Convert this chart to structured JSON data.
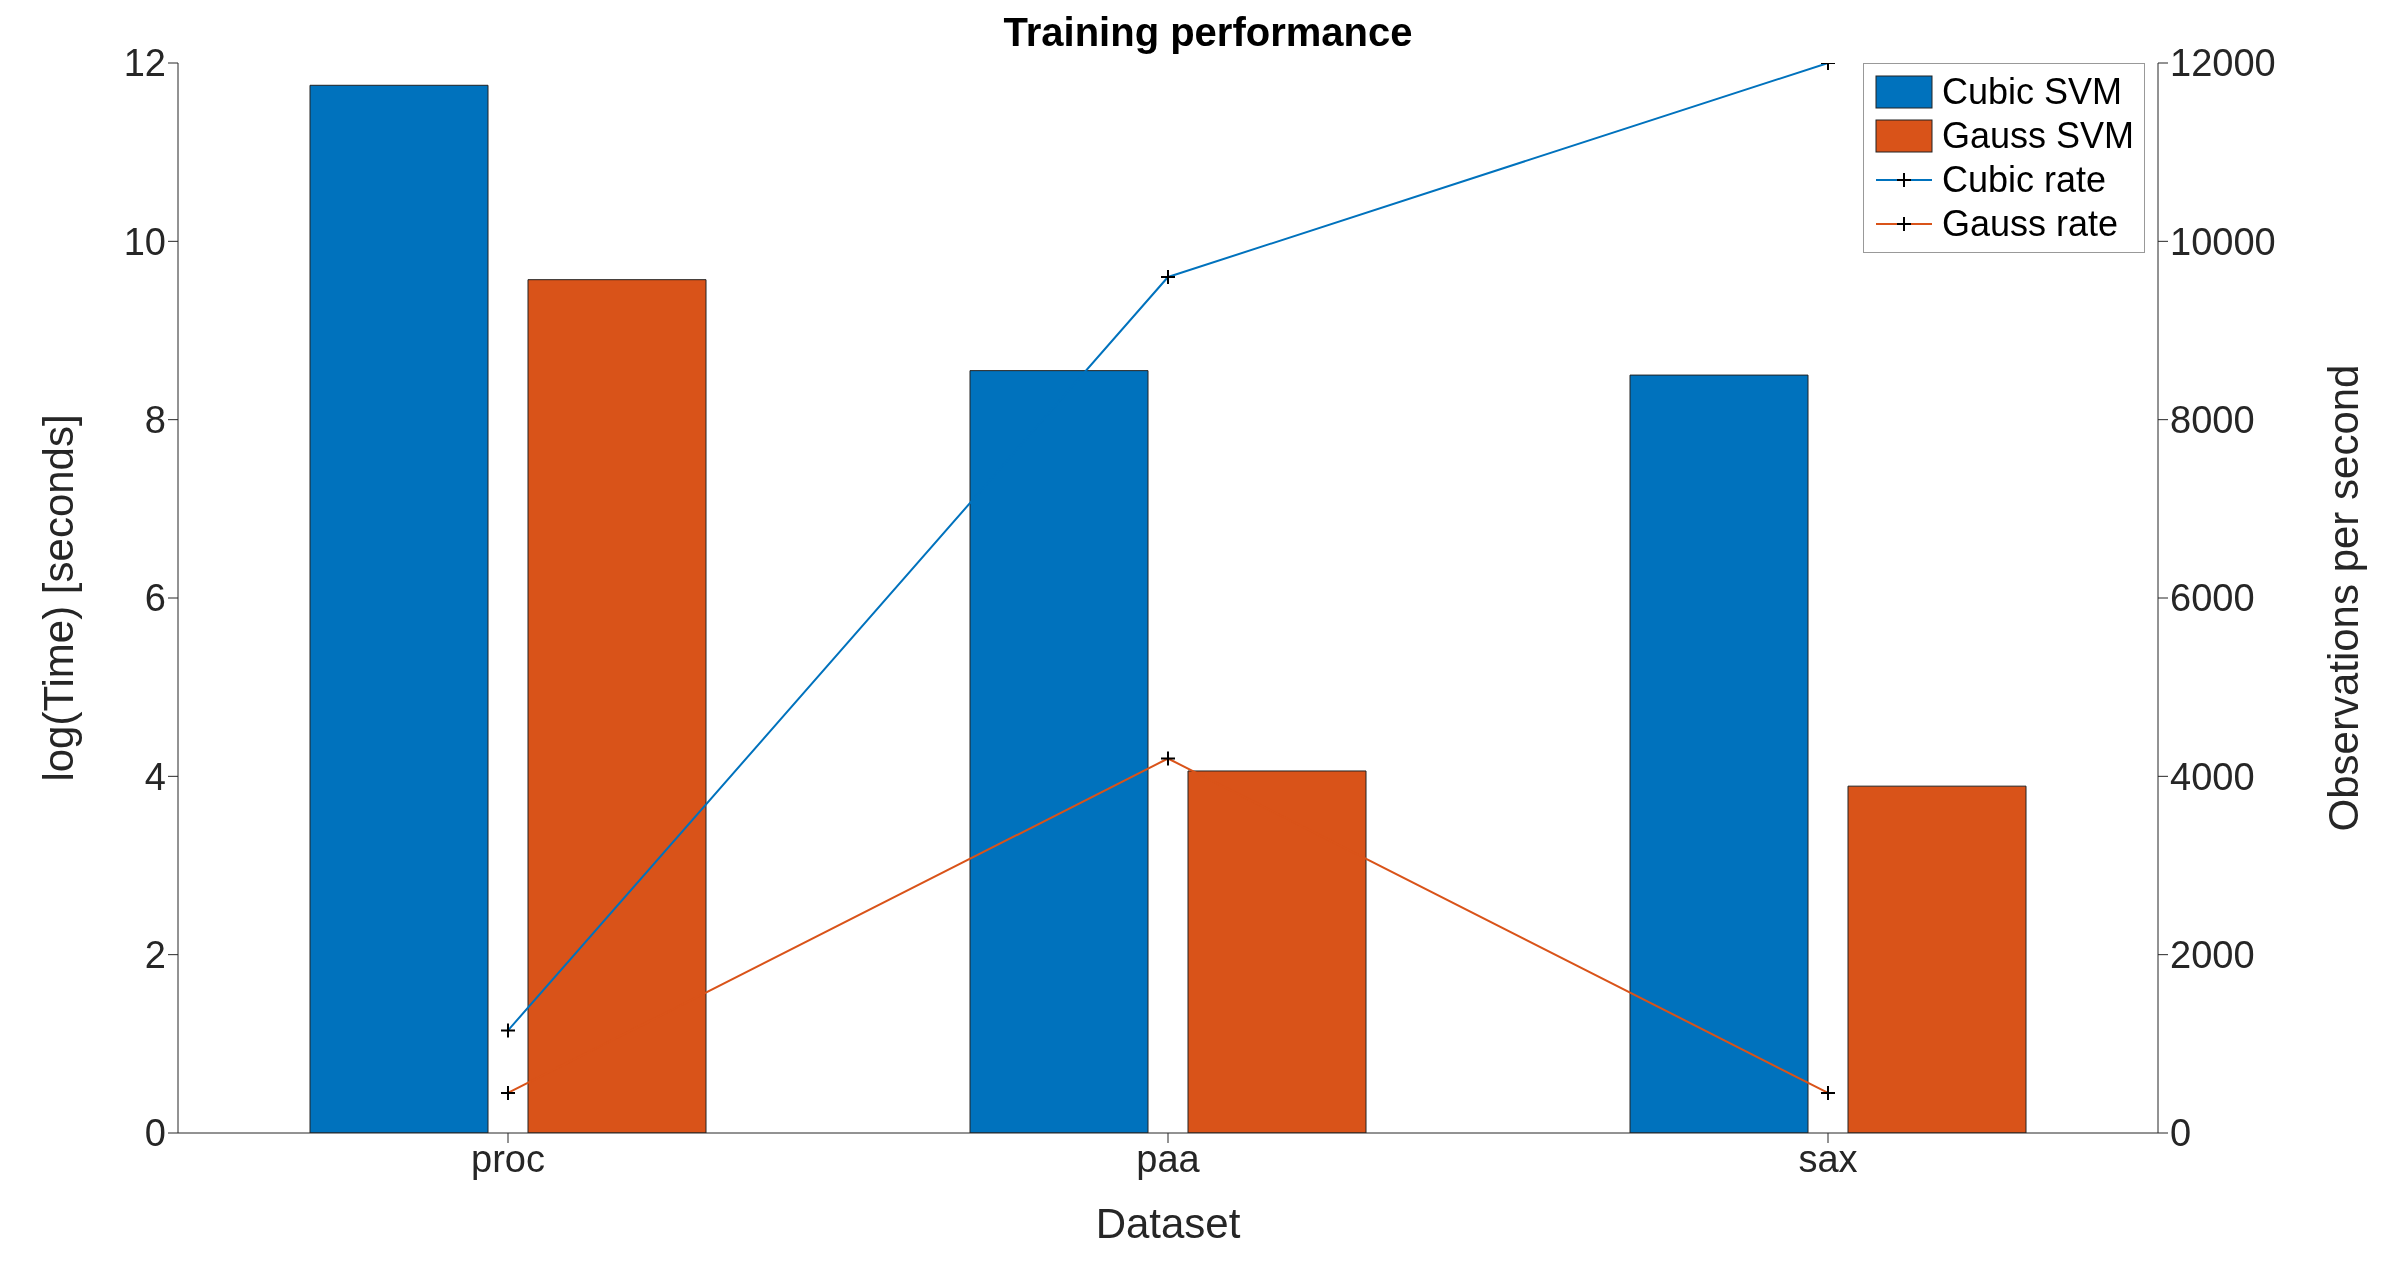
{
  "chart_data": {
    "type": "bar",
    "title": "Training performance",
    "xlabel": "Dataset",
    "ylabel": "log(Time) [seconds]",
    "y2label": "Observations per second",
    "categories": [
      "proc",
      "paa",
      "sax"
    ],
    "series": [
      {
        "name": "Cubic SVM",
        "color": "#0072bd",
        "values": [
          11.75,
          8.55,
          8.5
        ]
      },
      {
        "name": "Gauss SVM",
        "color": "#d95319",
        "values": [
          9.57,
          4.06,
          3.89
        ]
      },
      {
        "name": "Cubic rate",
        "type": "line",
        "axis": "y2",
        "color": "#0072bd",
        "values": [
          1150,
          9600,
          12000
        ]
      },
      {
        "name": "Gauss rate",
        "type": "line",
        "axis": "y2",
        "color": "#d95319",
        "values": [
          450,
          4200,
          450
        ]
      }
    ],
    "ylim": [
      0,
      12
    ],
    "yticks": [
      0,
      2,
      4,
      6,
      8,
      10,
      12
    ],
    "y2lim": [
      0,
      12000
    ],
    "y2ticks": [
      0,
      2000,
      4000,
      6000,
      8000,
      10000,
      12000
    ],
    "marker": "cross",
    "legend": "top right",
    "grid": false
  }
}
